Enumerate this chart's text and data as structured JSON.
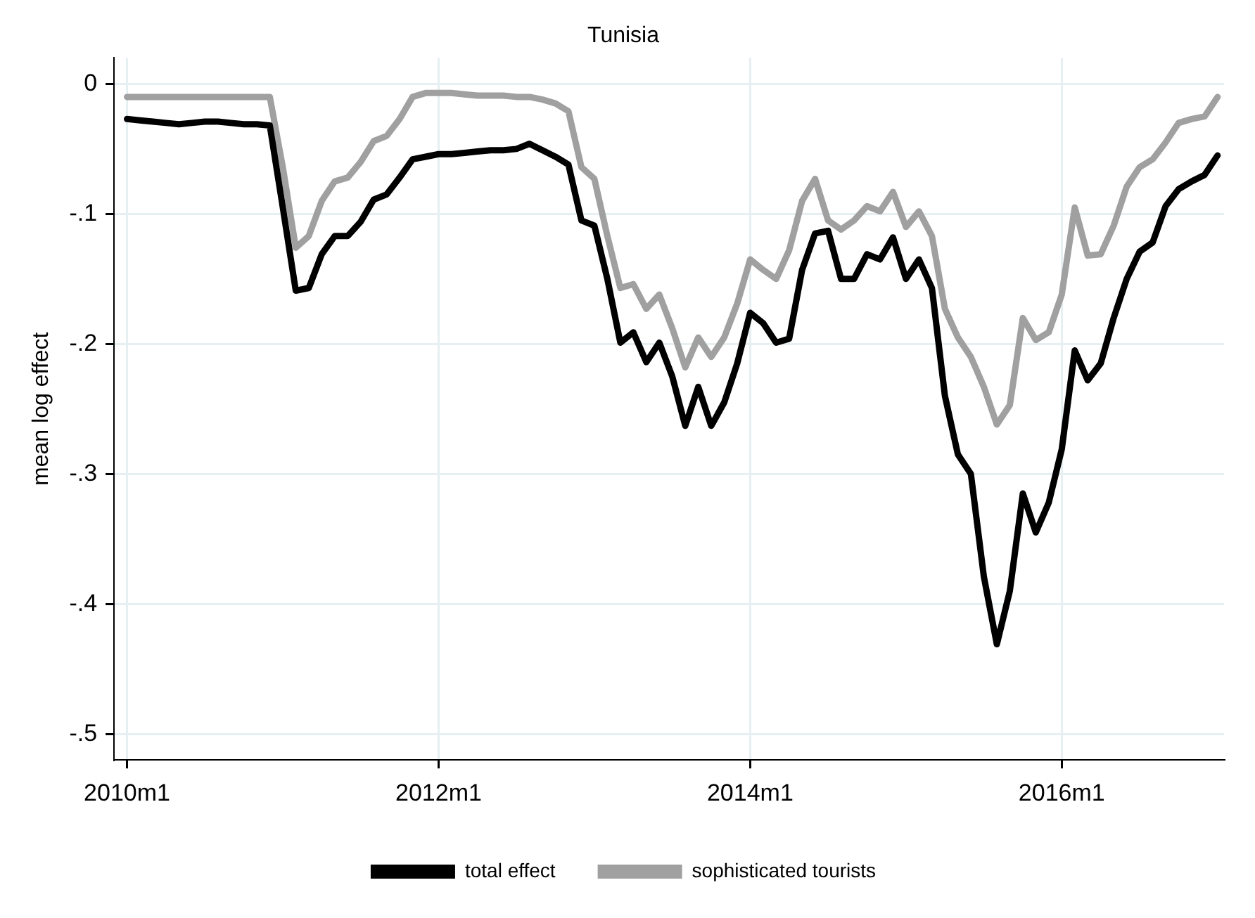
{
  "chart_data": {
    "type": "line",
    "title": "Tunisia",
    "ylabel": "mean log effect",
    "x": [
      "2010-01",
      "2010-02",
      "2010-03",
      "2010-04",
      "2010-05",
      "2010-06",
      "2010-07",
      "2010-08",
      "2010-09",
      "2010-10",
      "2010-11",
      "2010-12",
      "2011-01",
      "2011-02",
      "2011-03",
      "2011-04",
      "2011-05",
      "2011-06",
      "2011-07",
      "2011-08",
      "2011-09",
      "2011-10",
      "2011-11",
      "2011-12",
      "2012-01",
      "2012-02",
      "2012-03",
      "2012-04",
      "2012-05",
      "2012-06",
      "2012-07",
      "2012-08",
      "2012-09",
      "2012-10",
      "2012-11",
      "2012-12",
      "2013-01",
      "2013-02",
      "2013-03",
      "2013-04",
      "2013-05",
      "2013-06",
      "2013-07",
      "2013-08",
      "2013-09",
      "2013-10",
      "2013-11",
      "2013-12",
      "2014-01",
      "2014-02",
      "2014-03",
      "2014-04",
      "2014-05",
      "2014-06",
      "2014-07",
      "2014-08",
      "2014-09",
      "2014-10",
      "2014-11",
      "2014-12",
      "2015-01",
      "2015-02",
      "2015-03",
      "2015-04",
      "2015-05",
      "2015-06",
      "2015-07",
      "2015-08",
      "2015-09",
      "2015-10",
      "2015-11",
      "2015-12",
      "2016-01",
      "2016-02",
      "2016-03",
      "2016-04",
      "2016-05",
      "2016-06",
      "2016-07",
      "2016-08",
      "2016-09",
      "2016-10",
      "2016-11",
      "2016-12",
      "2017-01"
    ],
    "series": [
      {
        "name": "total effect",
        "color": "#000000",
        "values": [
          -0.027,
          -0.028,
          -0.029,
          -0.03,
          -0.031,
          -0.03,
          -0.029,
          -0.029,
          -0.03,
          -0.031,
          -0.031,
          -0.032,
          -0.095,
          -0.159,
          -0.157,
          -0.131,
          -0.117,
          -0.117,
          -0.106,
          -0.089,
          -0.085,
          -0.072,
          -0.058,
          -0.056,
          -0.054,
          -0.054,
          -0.053,
          -0.052,
          -0.051,
          -0.051,
          -0.05,
          -0.046,
          -0.051,
          -0.056,
          -0.062,
          -0.105,
          -0.109,
          -0.15,
          -0.199,
          -0.191,
          -0.214,
          -0.199,
          -0.225,
          -0.263,
          -0.233,
          -0.263,
          -0.245,
          -0.215,
          -0.176,
          -0.184,
          -0.199,
          -0.196,
          -0.143,
          -0.115,
          -0.113,
          -0.15,
          -0.15,
          -0.131,
          -0.135,
          -0.118,
          -0.15,
          -0.135,
          -0.157,
          -0.24,
          -0.285,
          -0.3,
          -0.379,
          -0.431,
          -0.39,
          -0.315,
          -0.345,
          -0.322,
          -0.281,
          -0.205,
          -0.228,
          -0.215,
          -0.18,
          -0.15,
          -0.129,
          -0.122,
          -0.094,
          -0.081,
          -0.075,
          -0.07,
          -0.055
        ]
      },
      {
        "name": "sophisticated tourists",
        "color": "#a0a0a0",
        "values": [
          -0.01,
          -0.01,
          -0.01,
          -0.01,
          -0.01,
          -0.01,
          -0.01,
          -0.01,
          -0.01,
          -0.01,
          -0.01,
          -0.01,
          -0.064,
          -0.126,
          -0.117,
          -0.09,
          -0.075,
          -0.072,
          -0.06,
          -0.044,
          -0.04,
          -0.027,
          -0.01,
          -0.007,
          -0.007,
          -0.007,
          -0.008,
          -0.009,
          -0.009,
          -0.009,
          -0.01,
          -0.01,
          -0.012,
          -0.015,
          -0.021,
          -0.064,
          -0.073,
          -0.117,
          -0.157,
          -0.154,
          -0.173,
          -0.162,
          -0.188,
          -0.218,
          -0.195,
          -0.21,
          -0.195,
          -0.169,
          -0.135,
          -0.143,
          -0.15,
          -0.128,
          -0.09,
          -0.073,
          -0.105,
          -0.112,
          -0.105,
          -0.094,
          -0.098,
          -0.083,
          -0.11,
          -0.098,
          -0.117,
          -0.173,
          -0.195,
          -0.21,
          -0.233,
          -0.262,
          -0.247,
          -0.18,
          -0.197,
          -0.191,
          -0.162,
          -0.095,
          -0.132,
          -0.131,
          -0.109,
          -0.079,
          -0.064,
          -0.058,
          -0.045,
          -0.03,
          -0.027,
          -0.025,
          -0.01
        ]
      }
    ],
    "xlim": [
      "2009-12-01",
      "2017-01-16"
    ],
    "xticks": [
      {
        "value": "2010-01",
        "label": "2010m1"
      },
      {
        "value": "2012-01",
        "label": "2012m1"
      },
      {
        "value": "2014-01",
        "label": "2014m1"
      },
      {
        "value": "2016-01",
        "label": "2016m1"
      }
    ],
    "ylim": [
      -0.52,
      0.02
    ],
    "yticks": [
      {
        "value": 0,
        "label": "0"
      },
      {
        "value": -0.1,
        "label": "-.1"
      },
      {
        "value": -0.2,
        "label": "-.2"
      },
      {
        "value": -0.3,
        "label": "-.3"
      },
      {
        "value": -0.4,
        "label": "-.4"
      },
      {
        "value": -0.5,
        "label": "-.5"
      }
    ],
    "grid": true,
    "legend": "bottom",
    "marker": "none",
    "line_style": "solid"
  }
}
